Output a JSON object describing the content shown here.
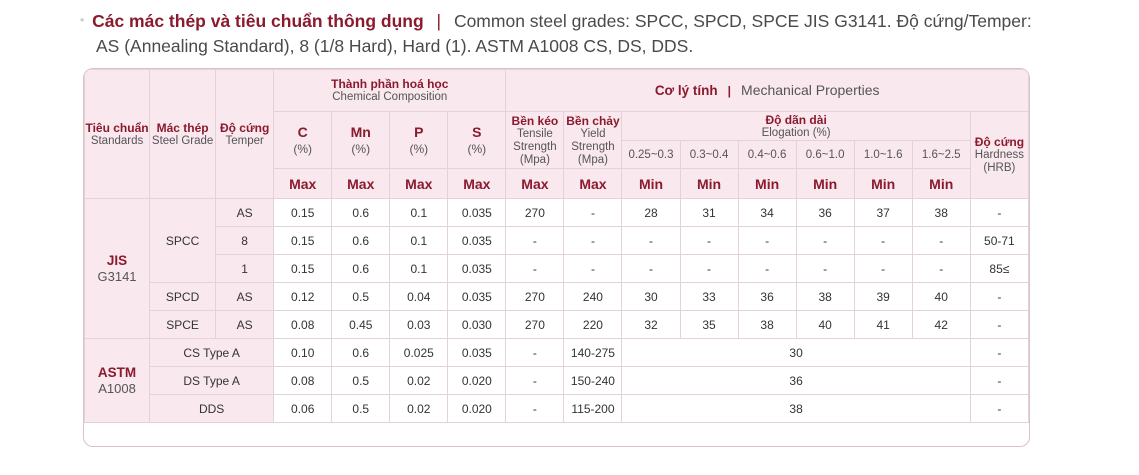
{
  "intro": {
    "bullet": "•",
    "title_vi": "Các mác thép và tiêu chuẩn thông dụng",
    "separator": "|",
    "line1_rest": "Common steel grades: SPCC, SPCD, SPCE JIS G3141. Độ cứng/Temper:",
    "line2": "AS (Annealing Standard), 8 (1/8 Hard), Hard (1). ASTM A1008 CS, DS, DDS."
  },
  "header": {
    "standards_vi": "Tiêu chuẩn",
    "standards_en": "Standards",
    "grade_vi": "Mác thép",
    "grade_en": "Steel Grade",
    "temper_vi": "Độ cứng",
    "temper_en": "Temper",
    "chem_vi": "Thành phần hoá học",
    "chem_en": "Chemical Composition",
    "mech_vi": "Cơ lý tính",
    "mech_sep": "|",
    "mech_en": "Mechanical Properties",
    "c": "C",
    "mn": "Mn",
    "p": "P",
    "s": "S",
    "percent": "(%)",
    "tensile_vi": "Bền kéo",
    "tensile_en": "Tensile Strength (Mpa)",
    "yield_vi": "Bền chảy",
    "yield_en": "Yield Strength (Mpa)",
    "elong_vi": "Độ dãn dài",
    "elong_en": "Elogation (%)",
    "hard_vi": "Độ cứng",
    "hard_en": "Hardness (HRB)",
    "ranges": [
      "0.25~0.3",
      "0.3~0.4",
      "0.4~0.6",
      "0.6~1.0",
      "1.0~1.6",
      "1.6~2.5"
    ],
    "max": "Max",
    "min": "Min"
  },
  "jis": {
    "name": "JIS",
    "code": "G3141",
    "spcc": "SPCC",
    "rows": [
      {
        "temper": "AS",
        "c": "0.15",
        "mn": "0.6",
        "p": "0.1",
        "s": "0.035",
        "tensile": "270",
        "yield": "-",
        "elong": [
          "28",
          "31",
          "34",
          "36",
          "37",
          "38"
        ],
        "hard": "-"
      },
      {
        "temper": "8",
        "c": "0.15",
        "mn": "0.6",
        "p": "0.1",
        "s": "0.035",
        "tensile": "-",
        "yield": "-",
        "elong": [
          "-",
          "-",
          "-",
          "-",
          "-",
          "-"
        ],
        "hard": "50-71"
      },
      {
        "temper": "1",
        "c": "0.15",
        "mn": "0.6",
        "p": "0.1",
        "s": "0.035",
        "tensile": "-",
        "yield": "-",
        "elong": [
          "-",
          "-",
          "-",
          "-",
          "-",
          "-"
        ],
        "hard": "85≤"
      },
      {
        "grade": "SPCD",
        "temper": "AS",
        "c": "0.12",
        "mn": "0.5",
        "p": "0.04",
        "s": "0.035",
        "tensile": "270",
        "yield": "240",
        "elong": [
          "30",
          "33",
          "36",
          "38",
          "39",
          "40"
        ],
        "hard": "-"
      },
      {
        "grade": "SPCE",
        "temper": "AS",
        "c": "0.08",
        "mn": "0.45",
        "p": "0.03",
        "s": "0.030",
        "tensile": "270",
        "yield": "220",
        "elong": [
          "32",
          "35",
          "38",
          "40",
          "41",
          "42"
        ],
        "hard": "-"
      }
    ]
  },
  "astm": {
    "name": "ASTM",
    "code": "A1008",
    "rows": [
      {
        "grade": "CS Type A",
        "c": "0.10",
        "mn": "0.6",
        "p": "0.025",
        "s": "0.035",
        "tensile": "-",
        "yield": "140-275",
        "elong": "30",
        "hard": "-"
      },
      {
        "grade": "DS Type A",
        "c": "0.08",
        "mn": "0.5",
        "p": "0.02",
        "s": "0.020",
        "tensile": "-",
        "yield": "150-240",
        "elong": "36",
        "hard": "-"
      },
      {
        "grade": "DDS",
        "c": "0.06",
        "mn": "0.5",
        "p": "0.02",
        "s": "0.020",
        "tensile": "-",
        "yield": "115-200",
        "elong": "38",
        "hard": "-"
      }
    ]
  }
}
